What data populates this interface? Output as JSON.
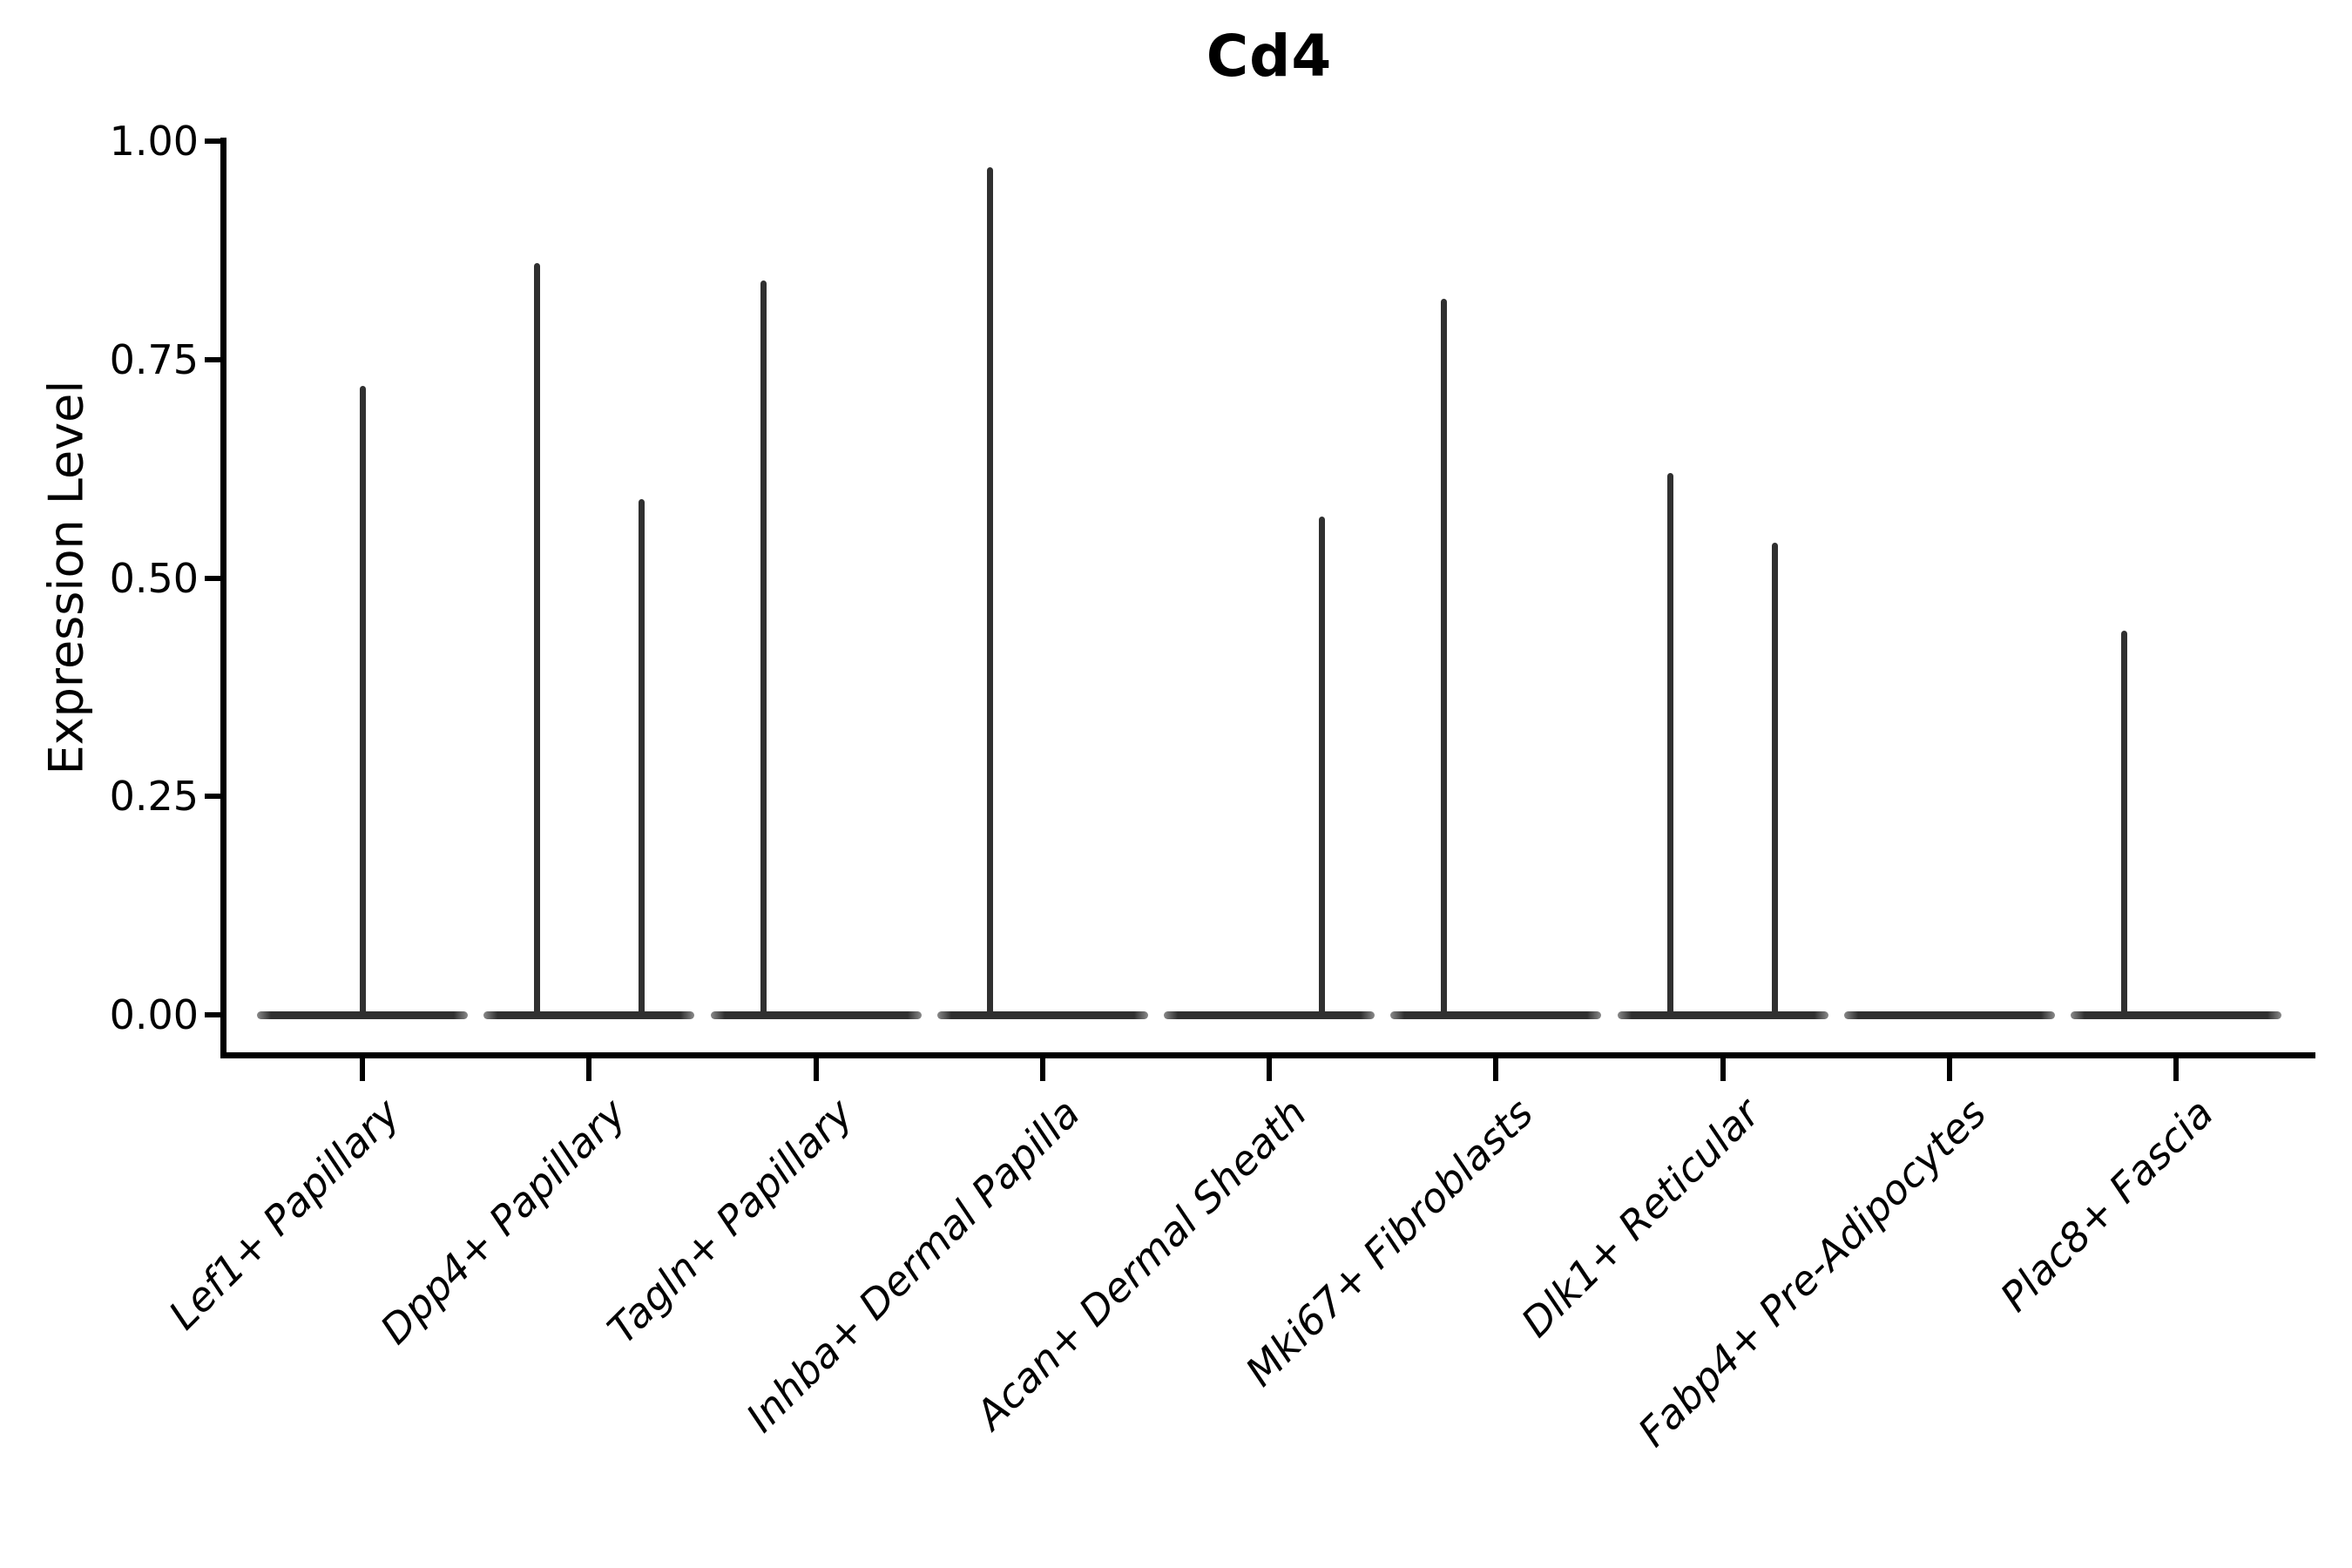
{
  "chart_data": {
    "type": "violin",
    "title": "Cd4",
    "xlabel": "",
    "ylabel": "Expression Level",
    "ylim": [
      0.0,
      1.0
    ],
    "yticks": [
      {
        "value": 1.0,
        "label": "1.00"
      },
      {
        "value": 0.75,
        "label": "0.75"
      },
      {
        "value": 0.5,
        "label": "0.50"
      },
      {
        "value": 0.25,
        "label": "0.25"
      },
      {
        "value": 0.0,
        "label": "0.00"
      }
    ],
    "categories": [
      "Lef1+ Papillary",
      "Dpp4+ Papillary",
      "Tagln+ Papillary",
      "Inhba+ Dermal Papilla",
      "Acan+ Dermal Sheath",
      "Mki67+ Fibroblasts",
      "Dlk1+ Reticular",
      "Fabp4+ Pre-Adipocytes",
      "Plac8+ Fascia"
    ],
    "violins": [
      {
        "category": "Lef1+ Papillary",
        "baseline_value": 0.0,
        "spikes": [
          {
            "position": "center",
            "max_expression": 0.72
          }
        ]
      },
      {
        "category": "Dpp4+ Papillary",
        "baseline_value": 0.0,
        "spikes": [
          {
            "position": "left",
            "max_expression": 0.86
          },
          {
            "position": "right",
            "max_expression": 0.59
          }
        ]
      },
      {
        "category": "Tagln+ Papillary",
        "baseline_value": 0.0,
        "spikes": [
          {
            "position": "left",
            "max_expression": 0.84
          }
        ]
      },
      {
        "category": "Inhba+ Dermal Papilla",
        "baseline_value": 0.0,
        "spikes": [
          {
            "position": "left",
            "max_expression": 0.97
          }
        ]
      },
      {
        "category": "Acan+ Dermal Sheath",
        "baseline_value": 0.0,
        "spikes": [
          {
            "position": "right",
            "max_expression": 0.57
          }
        ]
      },
      {
        "category": "Mki67+ Fibroblasts",
        "baseline_value": 0.0,
        "spikes": [
          {
            "position": "left",
            "max_expression": 0.82
          }
        ]
      },
      {
        "category": "Dlk1+ Reticular",
        "baseline_value": 0.0,
        "spikes": [
          {
            "position": "left",
            "max_expression": 0.62
          },
          {
            "position": "right",
            "max_expression": 0.54
          }
        ]
      },
      {
        "category": "Fabp4+ Pre-Adipocytes",
        "baseline_value": 0.0,
        "spikes": []
      },
      {
        "category": "Plac8+ Fascia",
        "baseline_value": 0.0,
        "spikes": [
          {
            "position": "left",
            "max_expression": 0.44
          }
        ]
      }
    ],
    "colors": {
      "violin": "#303030",
      "axis": "#000000",
      "text": "#000000",
      "background": "#ffffff"
    },
    "layout_hints": {
      "grid": false,
      "legend": "none",
      "x_tick_rotation_deg": 45,
      "spines": [
        "left",
        "bottom"
      ]
    }
  }
}
